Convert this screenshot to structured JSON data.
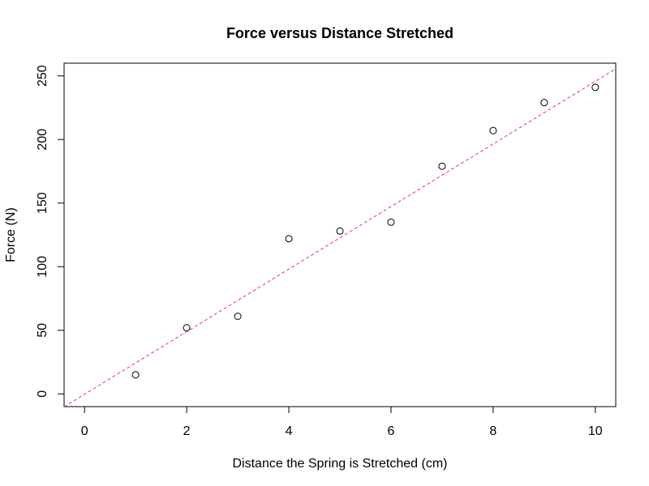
{
  "chart_data": {
    "type": "scatter",
    "title": "Force versus Distance Stretched",
    "xlabel": "Distance the Spring is Stretched (cm)",
    "ylabel": "Force (N)",
    "xlim": [
      -0.4,
      10.4
    ],
    "ylim": [
      -10,
      260
    ],
    "x_ticks": [
      0,
      2,
      4,
      6,
      8,
      10
    ],
    "y_ticks": [
      0,
      50,
      100,
      150,
      200,
      250
    ],
    "grid": false,
    "points": [
      {
        "x": 1,
        "y": 15
      },
      {
        "x": 2,
        "y": 52
      },
      {
        "x": 3,
        "y": 61
      },
      {
        "x": 4,
        "y": 122
      },
      {
        "x": 5,
        "y": 128
      },
      {
        "x": 6,
        "y": 135
      },
      {
        "x": 7,
        "y": 179
      },
      {
        "x": 8,
        "y": 207
      },
      {
        "x": 9,
        "y": 229
      },
      {
        "x": 10,
        "y": 241
      }
    ],
    "fit_line": {
      "slope": 24.6,
      "intercept": -0.3,
      "color": "#e8403a",
      "style": "dashed"
    },
    "point_color": "#000000"
  }
}
